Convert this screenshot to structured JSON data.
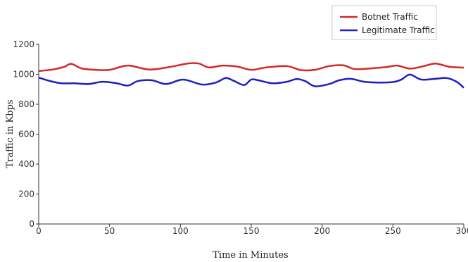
{
  "chart_data": {
    "type": "line",
    "title": "",
    "xlabel": "Time in Minutes",
    "ylabel": "Traffic in Kbps",
    "xlim": [
      0,
      300
    ],
    "ylim": [
      0,
      1200
    ],
    "xticks": [
      0,
      50,
      100,
      150,
      200,
      250,
      300
    ],
    "yticks": [
      0,
      200,
      400,
      600,
      800,
      1000,
      1200
    ],
    "xtick_labels": [
      "0",
      "50",
      "100",
      "150",
      "200",
      "250",
      "300"
    ],
    "ytick_labels": [
      "0",
      "200",
      "400",
      "600",
      "800",
      "1000",
      "1200"
    ],
    "grid": false,
    "legend_position": "top-right",
    "series": [
      {
        "name": "Botnet Traffic",
        "color": "#d62728",
        "x": [
          0,
          10,
          18,
          23,
          30,
          40,
          50,
          63,
          78,
          93,
          105,
          113,
          120,
          130,
          140,
          150,
          160,
          175,
          185,
          195,
          205,
          215,
          223,
          235,
          245,
          253,
          262,
          272,
          280,
          290,
          300
        ],
        "y": [
          1022,
          1032,
          1050,
          1070,
          1040,
          1030,
          1030,
          1058,
          1032,
          1050,
          1072,
          1072,
          1046,
          1058,
          1052,
          1030,
          1045,
          1055,
          1028,
          1030,
          1055,
          1060,
          1035,
          1040,
          1048,
          1058,
          1038,
          1055,
          1072,
          1050,
          1045
        ]
      },
      {
        "name": "Legitimate Traffic",
        "color": "#1f1fbf",
        "x": [
          0,
          8,
          16,
          25,
          35,
          45,
          55,
          63,
          70,
          80,
          90,
          102,
          115,
          125,
          132,
          138,
          145,
          150,
          155,
          165,
          175,
          182,
          188,
          195,
          205,
          212,
          220,
          230,
          240,
          250,
          256,
          262,
          270,
          280,
          288,
          295,
          300
        ],
        "y": [
          978,
          955,
          940,
          940,
          935,
          950,
          940,
          925,
          955,
          960,
          935,
          965,
          932,
          945,
          975,
          955,
          928,
          965,
          960,
          940,
          950,
          968,
          955,
          920,
          935,
          960,
          970,
          950,
          945,
          948,
          965,
          998,
          965,
          970,
          975,
          950,
          910
        ]
      }
    ]
  }
}
